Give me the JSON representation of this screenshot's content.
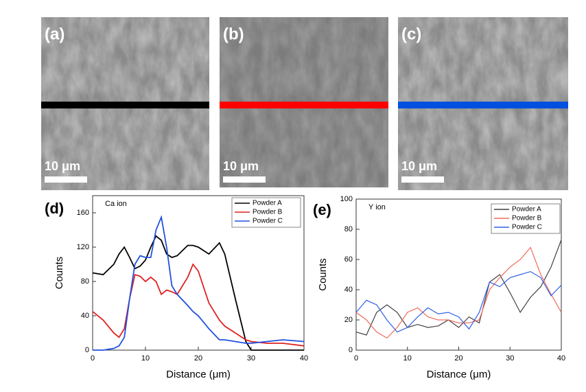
{
  "images": [
    {
      "label": "(a)",
      "scale_bar": "10 μm",
      "line_color": "#000000"
    },
    {
      "label": "(b)",
      "scale_bar": "10 μm",
      "line_color": "#ff0000"
    },
    {
      "label": "(c)",
      "scale_bar": "10 μm",
      "line_color": "#0050e0"
    }
  ],
  "chart_data": [
    {
      "type": "line",
      "panel_label": "(d)",
      "annotation": "Ca ion",
      "xlabel": "Distance (μm)",
      "ylabel": "Counts",
      "xlim": [
        0,
        40
      ],
      "xticks": [
        0,
        10,
        20,
        30,
        40
      ],
      "ylim": [
        0,
        180
      ],
      "yticks": [
        0,
        40,
        80,
        120,
        160
      ],
      "x": [
        0,
        2,
        4,
        5,
        6,
        7,
        8,
        9,
        10,
        11,
        12,
        13,
        14,
        15,
        16,
        18,
        19,
        20,
        22,
        24,
        25,
        27,
        29,
        30,
        33,
        36,
        40
      ],
      "series": [
        {
          "name": "Powder A",
          "color": "#000000",
          "values": [
            90,
            88,
            100,
            112,
            120,
            108,
            95,
            98,
            105,
            120,
            133,
            128,
            112,
            108,
            110,
            122,
            122,
            120,
            112,
            125,
            112,
            60,
            10,
            0,
            0,
            0,
            0
          ]
        },
        {
          "name": "Powder B",
          "color": "#e02020",
          "values": [
            45,
            35,
            20,
            15,
            25,
            60,
            88,
            86,
            80,
            85,
            80,
            65,
            70,
            68,
            65,
            85,
            100,
            92,
            55,
            35,
            28,
            20,
            12,
            10,
            8,
            8,
            5
          ]
        },
        {
          "name": "Powder C",
          "color": "#2050e0",
          "values": [
            0,
            0,
            2,
            5,
            15,
            60,
            100,
            110,
            108,
            108,
            140,
            155,
            120,
            75,
            65,
            52,
            45,
            40,
            25,
            12,
            12,
            10,
            8,
            8,
            10,
            12,
            10
          ]
        }
      ]
    },
    {
      "type": "line",
      "panel_label": "(e)",
      "annotation": "Y ion",
      "xlabel": "Distance (μm)",
      "ylabel": "Counts",
      "xlim": [
        0,
        40
      ],
      "xticks": [
        0,
        10,
        20,
        30,
        40
      ],
      "ylim": [
        0,
        100
      ],
      "yticks": [
        0,
        20,
        40,
        60,
        80,
        100
      ],
      "x": [
        0,
        2,
        4,
        6,
        8,
        10,
        12,
        14,
        16,
        18,
        20,
        22,
        24,
        26,
        28,
        30,
        32,
        34,
        36,
        38,
        40
      ],
      "series": [
        {
          "name": "Powder A",
          "color": "#404040",
          "values": [
            12,
            10,
            25,
            30,
            25,
            15,
            17,
            15,
            16,
            20,
            15,
            22,
            18,
            45,
            50,
            38,
            25,
            35,
            42,
            55,
            73
          ]
        },
        {
          "name": "Powder B",
          "color": "#f06a5a",
          "values": [
            25,
            20,
            12,
            8,
            15,
            25,
            28,
            22,
            20,
            20,
            18,
            18,
            20,
            40,
            48,
            55,
            60,
            68,
            50,
            37,
            25
          ]
        },
        {
          "name": "Powder C",
          "color": "#3060e8",
          "values": [
            25,
            33,
            30,
            20,
            12,
            15,
            22,
            28,
            24,
            25,
            22,
            14,
            25,
            45,
            42,
            48,
            50,
            52,
            48,
            36,
            43
          ]
        }
      ]
    }
  ]
}
